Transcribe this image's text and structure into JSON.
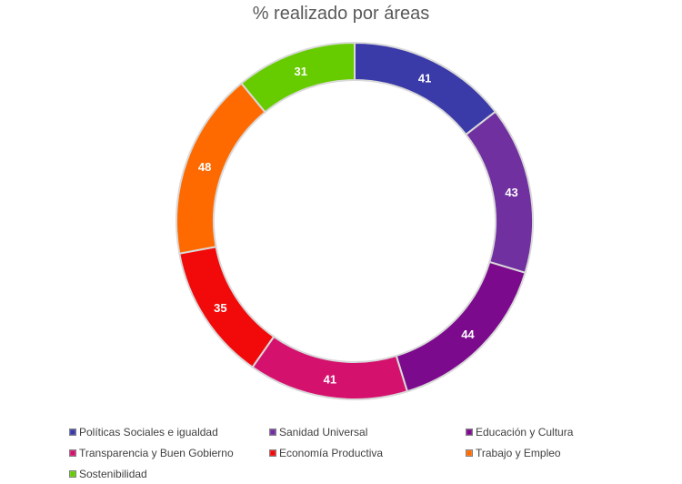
{
  "chart_data": {
    "type": "pie",
    "title": "% realizado por áreas",
    "style": "donut",
    "legend_position": "bottom",
    "series": [
      {
        "name": "",
        "slices": [
          {
            "label": "Políticas Sociales e igualdad",
            "value": 41,
            "color": "#3a3aa8"
          },
          {
            "label": "Sanidad Universal",
            "value": 43,
            "color": "#7030a0"
          },
          {
            "label": "Educación y Cultura",
            "value": 44,
            "color": "#7b0a8c"
          },
          {
            "label": "Transparencia y Buen Gobierno",
            "value": 41,
            "color": "#d4126e"
          },
          {
            "label": "Economía Productiva",
            "value": 35,
            "color": "#f20a0a"
          },
          {
            "label": "Trabajo y Empleo",
            "value": 48,
            "color": "#ff6a00"
          },
          {
            "label": "Sostenibilidad",
            "value": 31,
            "color": "#66cc00"
          }
        ]
      }
    ]
  }
}
